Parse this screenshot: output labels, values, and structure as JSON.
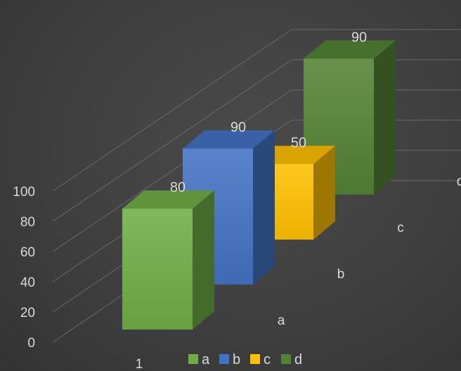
{
  "chart_data": {
    "type": "bar",
    "chart_style": "3d-column",
    "categories": [
      "1"
    ],
    "series": [
      {
        "name": "a",
        "values": [
          80
        ],
        "color": "#70ad47"
      },
      {
        "name": "b",
        "values": [
          90
        ],
        "color": "#4472c4"
      },
      {
        "name": "c",
        "values": [
          50
        ],
        "color": "#ffc000"
      },
      {
        "name": "d",
        "values": [
          90
        ],
        "color": "#548235"
      }
    ],
    "depth_labels": [
      "a",
      "b",
      "c",
      "d"
    ],
    "y_ticks": [
      "0",
      "20",
      "40",
      "60",
      "80",
      "100"
    ],
    "ylim": [
      0,
      100
    ],
    "title": "",
    "xlabel": "",
    "ylabel": "",
    "grid": true,
    "legend_position": "bottom",
    "background_color": "#404040",
    "text_color": "#d9d9d9"
  }
}
